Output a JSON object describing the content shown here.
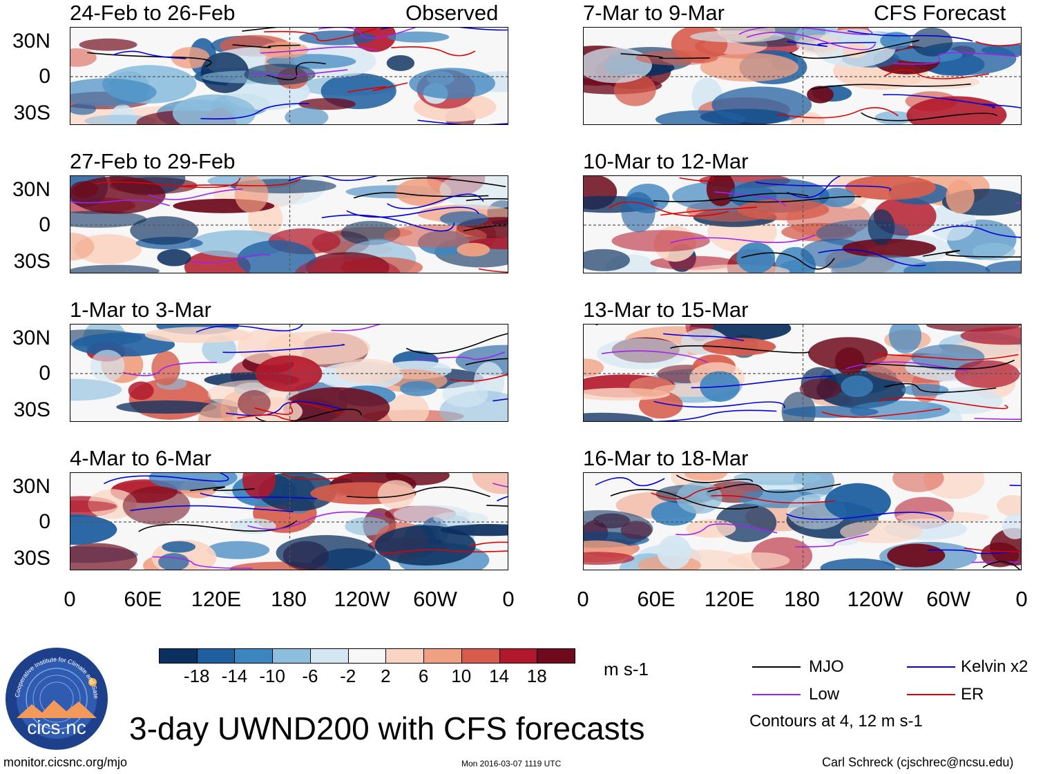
{
  "panels": [
    {
      "title": "24-Feb to 26-Feb",
      "tag": "Observed"
    },
    {
      "title": "7-Mar to 9-Mar",
      "tag": "CFS Forecast"
    },
    {
      "title": "27-Feb to 29-Feb",
      "tag": ""
    },
    {
      "title": "10-Mar to 12-Mar",
      "tag": ""
    },
    {
      "title": "1-Mar to 3-Mar",
      "tag": ""
    },
    {
      "title": "13-Mar to 15-Mar",
      "tag": ""
    },
    {
      "title": "4-Mar to 6-Mar",
      "tag": ""
    },
    {
      "title": "16-Mar to 18-Mar",
      "tag": ""
    }
  ],
  "lat_labels": [
    "30N",
    "0",
    "30S"
  ],
  "lon_labels": [
    "0",
    "60E",
    "120E",
    "180",
    "120W",
    "60W",
    "0"
  ],
  "colorbar": {
    "labels": [
      "-18",
      "-14",
      "-10",
      "-6",
      "-2",
      "2",
      "6",
      "10",
      "14",
      "18"
    ],
    "colors": [
      "#0b2f5e",
      "#1f5fa0",
      "#3d85bf",
      "#8dbedd",
      "#d3e6f2",
      "#f7f7f7",
      "#fbd5c3",
      "#f1a183",
      "#d75c4c",
      "#b2182b",
      "#6e0a1c"
    ],
    "units": "m s-1"
  },
  "legend": {
    "items": [
      {
        "label": "MJO",
        "color": "#000000"
      },
      {
        "label": "Kelvin x2",
        "color": "#0000dd"
      },
      {
        "label": "Low",
        "color": "#a020f0"
      },
      {
        "label": "ER",
        "color": "#e00000"
      }
    ],
    "note": "Contours at 4, 12 m s-1"
  },
  "footer": {
    "main_title": "3-day UWND200 with CFS forecasts",
    "url": "monitor.cicsnc.org/mjo",
    "timestamp": "Mon 2016-03-07 1119 UTC",
    "credit": "Carl Schreck (cjschrec@ncsu.edu)",
    "logo_text": "cics.nc",
    "logo_ring_text": "Cooperative Institute for Climate and Satellites"
  }
}
